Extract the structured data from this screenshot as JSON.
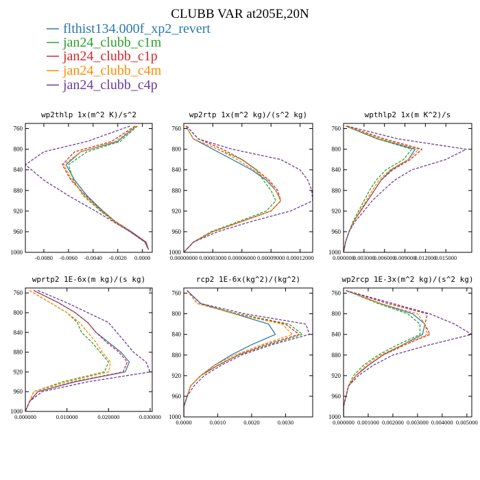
{
  "title": "CLUBB VAR at205E,20N",
  "legend": [
    {
      "name": "flthist134.000f_xp2_revert",
      "color": "#2b78b4",
      "dash": "solid"
    },
    {
      "name": "jan24_clubb_c1m",
      "color": "#2ca02c",
      "dash": "dashed"
    },
    {
      "name": "jan24_clubb_c1p",
      "color": "#d62728",
      "dash": "dashed"
    },
    {
      "name": "jan24_clubb_c4m",
      "color": "#ff8c00",
      "dash": "dashed"
    },
    {
      "name": "jan24_clubb_c4p",
      "color": "#6a3d9a",
      "dash": "dashed"
    }
  ],
  "chart_data": [
    {
      "type": "line",
      "title": "wp2thlp  1x(m^2 K)/s^2",
      "ylim": [
        1000,
        750
      ],
      "yticks": [
        760,
        800,
        840,
        880,
        920,
        960,
        1000
      ],
      "ytick_labels": [
        "760",
        "800",
        "840",
        "880",
        "920",
        "960",
        "1000"
      ],
      "xlim": [
        -0.0095,
        0.0008
      ],
      "xticks": [
        -0.008,
        -0.006,
        -0.004,
        -0.002,
        0.0
      ],
      "xtick_labels": [
        "-0.0080",
        "-0.0060",
        "-0.0040",
        "-0.0020",
        "0.0000"
      ],
      "y": [
        755,
        785,
        805,
        830,
        860,
        890,
        920,
        940,
        960,
        980,
        995
      ],
      "series": [
        {
          "values": [
            -0.0005,
            -0.002,
            -0.005,
            -0.0062,
            -0.0055,
            -0.0045,
            -0.0032,
            -0.0022,
            -0.0009,
            0.0003,
            0.0005
          ]
        },
        {
          "values": [
            -0.0004,
            -0.0018,
            -0.0045,
            -0.006,
            -0.0056,
            -0.0048,
            -0.0034,
            -0.0023,
            -0.001,
            0.0002,
            0.0005
          ]
        },
        {
          "values": [
            -0.0006,
            -0.0025,
            -0.0055,
            -0.0065,
            -0.0058,
            -0.0046,
            -0.0033,
            -0.0022,
            -0.0009,
            0.0003,
            0.0005
          ]
        },
        {
          "values": [
            -0.0005,
            -0.0022,
            -0.005,
            -0.0064,
            -0.0057,
            -0.0047,
            -0.0033,
            -0.0022,
            -0.001,
            0.0002,
            0.0005
          ]
        },
        {
          "values": [
            -0.001,
            -0.0045,
            -0.008,
            -0.0095,
            -0.008,
            -0.006,
            -0.0038,
            -0.0024,
            -0.001,
            0.0002,
            0.0005
          ]
        }
      ]
    },
    {
      "type": "line",
      "title": "wp2rtp  1x(m^2 kg)/(s^2 kg)",
      "ylim": [
        1000,
        750
      ],
      "yticks": [
        760,
        800,
        840,
        880,
        920,
        960,
        1000
      ],
      "ytick_labels": [
        "760",
        "800",
        "840",
        "880",
        "920",
        "960",
        "1000"
      ],
      "xlim": [
        0.0,
        0.000133
      ],
      "xticks": [
        0.0,
        3e-05,
        6e-05,
        9e-05,
        0.00012
      ],
      "xtick_labels": [
        "0.00000000",
        "0.00003000",
        "0.00006000",
        "0.00009000",
        "0.00012000"
      ],
      "y": [
        755,
        780,
        800,
        820,
        840,
        860,
        880,
        900,
        920,
        940,
        960,
        980,
        1000
      ],
      "series": [
        {
          "values": [
            2e-06,
            1e-05,
            3e-05,
            5e-05,
            7e-05,
            8.5e-05,
            9.5e-05,
            0.0001,
            9e-05,
            6e-05,
            3e-05,
            1e-05,
            0.0
          ]
        },
        {
          "values": [
            2e-06,
            1e-05,
            3.5e-05,
            6e-05,
            7.5e-05,
            8.2e-05,
            9e-05,
            9.5e-05,
            8.5e-05,
            5.7e-05,
            2.8e-05,
            1e-05,
            0.0
          ]
        },
        {
          "values": [
            3e-06,
            1.5e-05,
            4e-05,
            6e-05,
            7.5e-05,
            8.8e-05,
            9.7e-05,
            0.0001,
            9e-05,
            6e-05,
            3e-05,
            1e-05,
            0.0
          ]
        },
        {
          "values": [
            2e-06,
            1e-05,
            3.5e-05,
            5.5e-05,
            7.2e-05,
            8.7e-05,
            9.5e-05,
            0.0001,
            9e-05,
            6e-05,
            3e-05,
            1e-05,
            0.0
          ]
        },
        {
          "values": [
            3e-06,
            1.5e-05,
            5e-05,
            0.0001,
            0.00012,
            0.000128,
            0.000132,
            0.000133,
            0.00011,
            7e-05,
            3.5e-05,
            1e-05,
            0.0
          ]
        }
      ]
    },
    {
      "type": "line",
      "title": "wpthlp2  1x(m K^2)/s",
      "ylim": [
        1000,
        750
      ],
      "yticks": [
        760,
        800,
        840,
        880,
        920,
        960,
        1000
      ],
      "ytick_labels": [
        "760",
        "800",
        "840",
        "880",
        "920",
        "960",
        "1000"
      ],
      "xlim": [
        0.0,
        0.0188
      ],
      "xticks": [
        0.0,
        0.003,
        0.006,
        0.009,
        0.012,
        0.015
      ],
      "xtick_labels": [
        "0.000000",
        "0.003000",
        "0.006000",
        "0.009000",
        "0.012000",
        "0.015000"
      ],
      "y": [
        755,
        780,
        800,
        820,
        840,
        860,
        880,
        900,
        920,
        940,
        960,
        980,
        1000
      ],
      "series": [
        {
          "values": [
            0.0003,
            0.005,
            0.0105,
            0.0095,
            0.007,
            0.0055,
            0.0045,
            0.0035,
            0.0025,
            0.0015,
            0.0008,
            0.0003,
            0.0
          ]
        },
        {
          "values": [
            0.0003,
            0.005,
            0.01,
            0.0088,
            0.0062,
            0.0048,
            0.0038,
            0.003,
            0.0022,
            0.0014,
            0.0008,
            0.0003,
            0.0
          ]
        },
        {
          "values": [
            0.0004,
            0.006,
            0.0115,
            0.0098,
            0.0072,
            0.0055,
            0.0045,
            0.0035,
            0.0025,
            0.0015,
            0.0008,
            0.0003,
            0.0
          ]
        },
        {
          "values": [
            0.0003,
            0.0055,
            0.011,
            0.0095,
            0.0068,
            0.0052,
            0.0042,
            0.0033,
            0.0024,
            0.0015,
            0.0008,
            0.0003,
            0.0
          ]
        },
        {
          "values": [
            0.0005,
            0.008,
            0.018,
            0.015,
            0.01,
            0.0075,
            0.0058,
            0.0042,
            0.003,
            0.0017,
            0.0008,
            0.0003,
            0.0
          ]
        }
      ]
    },
    {
      "type": "line",
      "title": "wprtp2  1E-6x(m kg)/(s kg)",
      "ylim": [
        1000,
        750
      ],
      "yticks": [
        760,
        800,
        840,
        880,
        920,
        960,
        1000
      ],
      "ytick_labels": [
        "760",
        "800",
        "840",
        "880",
        "920",
        "960",
        "1000"
      ],
      "xlim": [
        0.0,
        0.0305
      ],
      "xticks": [
        0.0,
        0.01,
        0.02,
        0.03
      ],
      "xtick_labels": [
        "0.000000",
        "0.010000",
        "0.020000",
        "0.030000"
      ],
      "y": [
        755,
        780,
        800,
        820,
        840,
        860,
        880,
        900,
        920,
        940,
        960,
        980,
        1000
      ],
      "series": [
        {
          "values": [
            0.002,
            0.008,
            0.012,
            0.015,
            0.017,
            0.02,
            0.023,
            0.025,
            0.024,
            0.012,
            0.003,
            0.001,
            0.0
          ]
        },
        {
          "values": [
            0.001,
            0.006,
            0.01,
            0.0125,
            0.0135,
            0.016,
            0.018,
            0.02,
            0.019,
            0.009,
            0.002,
            0.001,
            0.0
          ]
        },
        {
          "values": [
            0.002,
            0.008,
            0.012,
            0.015,
            0.017,
            0.0195,
            0.0225,
            0.0245,
            0.0235,
            0.0115,
            0.003,
            0.001,
            0.0
          ]
        },
        {
          "values": [
            0.001,
            0.006,
            0.01,
            0.013,
            0.015,
            0.017,
            0.0185,
            0.0205,
            0.02,
            0.01,
            0.002,
            0.001,
            0.0
          ]
        },
        {
          "values": [
            0.003,
            0.01,
            0.015,
            0.02,
            0.022,
            0.024,
            0.026,
            0.029,
            0.03,
            0.015,
            0.004,
            0.001,
            0.0
          ]
        }
      ]
    },
    {
      "type": "line",
      "title": "rcp2  1E-6x(kg^2)/(kg^2)",
      "ylim": [
        1000,
        750
      ],
      "yticks": [
        760,
        800,
        840,
        880,
        920,
        960,
        1000
      ],
      "ytick_labels": [
        "760",
        "800",
        "840",
        "880",
        "920",
        "960",
        "1000"
      ],
      "xlim": [
        0.0,
        0.0038
      ],
      "xticks": [
        0.0,
        0.001,
        0.002,
        0.003
      ],
      "xtick_labels": [
        "0.0000",
        "0.0010",
        "0.0020",
        "0.0030"
      ],
      "y": [
        755,
        780,
        800,
        820,
        840,
        860,
        880,
        900,
        920,
        940,
        960,
        980,
        1000
      ],
      "series": [
        {
          "values": [
            0.0001,
            0.0005,
            0.0015,
            0.0025,
            0.0027,
            0.002,
            0.0014,
            0.0009,
            0.0005,
            0.0002,
            0.0001,
            0.0,
            0.0
          ]
        },
        {
          "values": [
            0.0001,
            0.0004,
            0.0016,
            0.0031,
            0.0035,
            0.0025,
            0.0016,
            0.001,
            0.0005,
            0.0002,
            0.0001,
            0.0,
            0.0
          ]
        },
        {
          "values": [
            0.0001,
            0.0004,
            0.0015,
            0.003,
            0.0034,
            0.0024,
            0.0016,
            0.001,
            0.0005,
            0.0002,
            0.0001,
            0.0,
            0.0
          ]
        },
        {
          "values": [
            0.0001,
            0.0004,
            0.0015,
            0.0029,
            0.0032,
            0.0023,
            0.0015,
            0.0009,
            0.0005,
            0.0002,
            0.0001,
            0.0,
            0.0
          ]
        },
        {
          "values": [
            0.0001,
            0.0005,
            0.0018,
            0.0036,
            0.0037,
            0.0026,
            0.0017,
            0.0011,
            0.0006,
            0.0003,
            0.0001,
            0.0,
            0.0
          ]
        }
      ]
    },
    {
      "type": "line",
      "title": "wp2rcp  1E-3x(m^2 kg)/(s^2 kg)",
      "ylim": [
        1000,
        750
      ],
      "yticks": [
        760,
        800,
        840,
        880,
        920,
        960,
        1000
      ],
      "ytick_labels": [
        "760",
        "800",
        "840",
        "880",
        "920",
        "960",
        "1000"
      ],
      "xlim": [
        0.0,
        0.0052
      ],
      "xticks": [
        0.0,
        0.001,
        0.002,
        0.003,
        0.004,
        0.005
      ],
      "xtick_labels": [
        "0.000000",
        "0.001000",
        "0.002000",
        "0.003000",
        "0.004000",
        "0.005000"
      ],
      "y": [
        755,
        780,
        800,
        820,
        840,
        860,
        880,
        900,
        920,
        940,
        960,
        980,
        1000
      ],
      "series": [
        {
          "values": [
            0.0001,
            0.0015,
            0.0028,
            0.0033,
            0.0032,
            0.0024,
            0.0016,
            0.001,
            0.0005,
            0.0002,
            0.0001,
            0.0,
            0.0
          ]
        },
        {
          "values": [
            0.0001,
            0.0014,
            0.0026,
            0.0031,
            0.0031,
            0.0022,
            0.0014,
            0.0008,
            0.0004,
            0.0002,
            0.0001,
            0.0,
            0.0
          ]
        },
        {
          "values": [
            0.0001,
            0.0018,
            0.0034,
            0.0033,
            0.0035,
            0.0025,
            0.0016,
            0.001,
            0.0005,
            0.0002,
            0.0001,
            0.0,
            0.0
          ]
        },
        {
          "values": [
            0.0001,
            0.0015,
            0.003,
            0.0033,
            0.0034,
            0.0024,
            0.0015,
            0.0009,
            0.0005,
            0.0002,
            0.0001,
            0.0,
            0.0
          ]
        },
        {
          "values": [
            0.0001,
            0.002,
            0.0035,
            0.0045,
            0.0052,
            0.0035,
            0.002,
            0.0012,
            0.0006,
            0.0002,
            0.0001,
            0.0,
            0.0
          ]
        }
      ]
    }
  ]
}
